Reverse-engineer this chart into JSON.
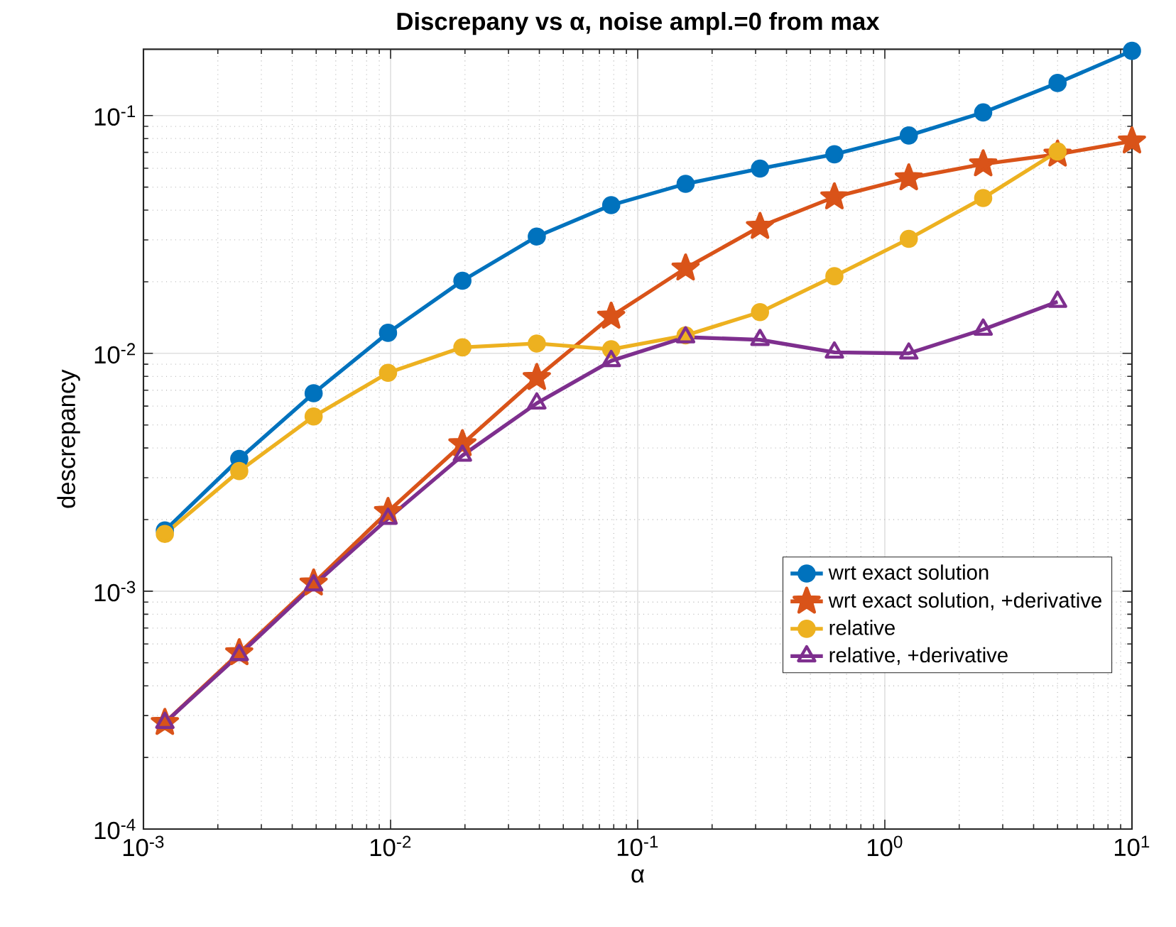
{
  "chart_data": {
    "type": "line",
    "title": "Discrepany vs α, noise ampl.=0 from max",
    "xlabel": "α",
    "ylabel": "descrepancy",
    "x": [
      0.001220703125,
      0.00244140625,
      0.0048828125,
      0.009765625,
      0.01953125,
      0.0390625,
      0.078125,
      0.15625,
      0.3125,
      0.625,
      1.25,
      2.5,
      5,
      10
    ],
    "series": [
      {
        "name": "wrt exact solution",
        "color": "#0072bd",
        "marker": "circle",
        "values": [
          0.0018,
          0.0036,
          0.0068,
          0.0122,
          0.0202,
          0.031,
          0.042,
          0.0516,
          0.0598,
          0.0687,
          0.0824,
          0.103,
          0.137,
          0.187
        ]
      },
      {
        "name": "wrt exact solution, +derivative",
        "color": "#d95319",
        "marker": "star",
        "values": [
          0.00028,
          0.00055,
          0.00108,
          0.00216,
          0.00416,
          0.0079,
          0.0143,
          0.0228,
          0.0341,
          0.0454,
          0.0546,
          0.0625,
          0.0687,
          0.078
        ]
      },
      {
        "name": "relative",
        "color": "#edb120",
        "marker": "circle",
        "values": [
          0.00174,
          0.0032,
          0.00543,
          0.00828,
          0.0106,
          0.011,
          0.0104,
          0.0119,
          0.0149,
          0.0211,
          0.0303,
          0.045,
          0.0706,
          null
        ]
      },
      {
        "name": "relative, +derivative",
        "color": "#7e2f8e",
        "marker": "triangle",
        "values": [
          0.00028,
          0.00054,
          0.00106,
          0.00202,
          0.00372,
          0.00617,
          0.0093,
          0.0117,
          0.0114,
          0.0101,
          0.01,
          0.0126,
          0.0165,
          null
        ]
      }
    ],
    "log": "xy",
    "xlim": [
      0.001,
      10
    ],
    "ylim": [
      0.0001,
      0.19
    ],
    "xticks": [
      {
        "value": 0.001,
        "label": "10$^{-3}$"
      },
      {
        "value": 0.01,
        "label": "10$^{-2}$"
      },
      {
        "value": 0.1,
        "label": "10$^{-1}$"
      },
      {
        "value": 1,
        "label": "10$^{0}$"
      },
      {
        "value": 10,
        "label": "10$^{1}$"
      }
    ],
    "yticks": [
      {
        "value": 0.0001,
        "label": "10$^{-4}$"
      },
      {
        "value": 0.001,
        "label": "10$^{-3}$"
      },
      {
        "value": 0.01,
        "label": "10$^{-2}$"
      },
      {
        "value": 0.1,
        "label": "10$^{-1}$"
      }
    ],
    "grid": true,
    "legend": "bottom right",
    "line_style": "solid"
  }
}
